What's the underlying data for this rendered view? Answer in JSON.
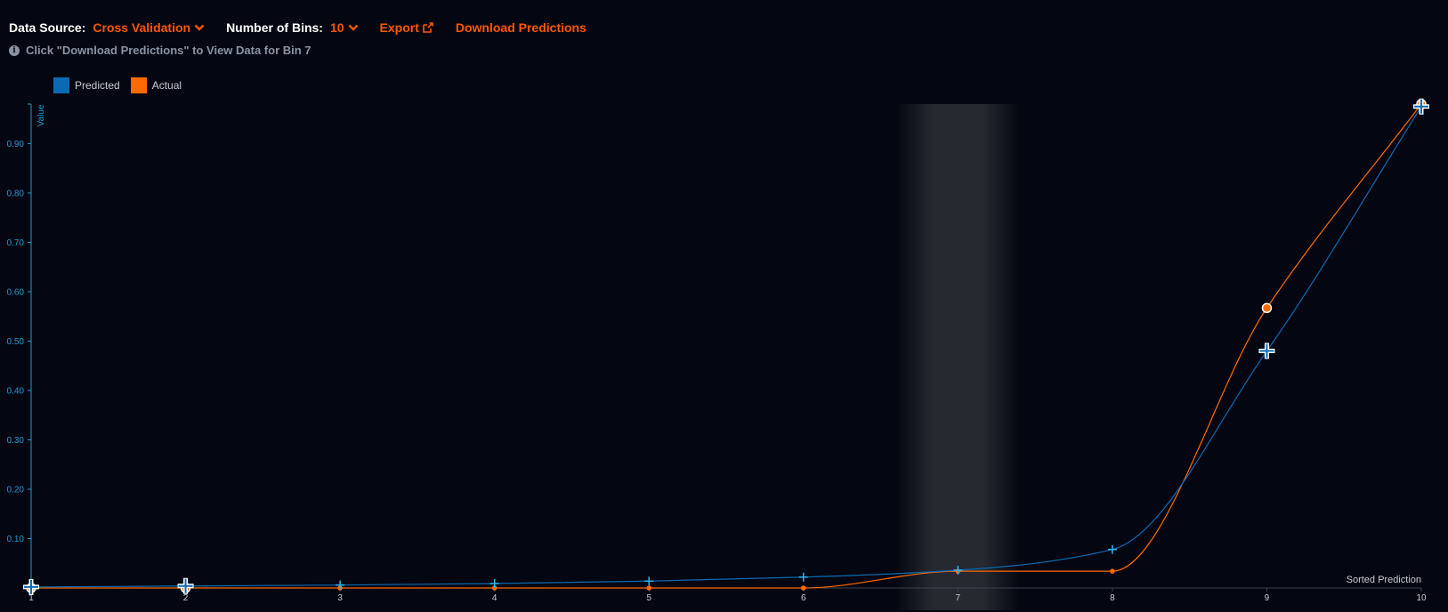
{
  "toolbar": {
    "data_source_label": "Data Source:",
    "data_source_value": "Cross Validation",
    "bins_label": "Number of Bins:",
    "bins_value": "10",
    "export_label": "Export",
    "download_label": "Download Predictions"
  },
  "info": {
    "text": "Click \"Download Predictions\" to View Data for Bin 7"
  },
  "colors": {
    "predicted": "#0a6ab4",
    "predicted_marker": "#22b8f0",
    "actual": "#ff6a00",
    "axis": "#1a9bd7",
    "accent": "#ff5600"
  },
  "chart_data": {
    "type": "line",
    "x": [
      1,
      2,
      3,
      4,
      5,
      6,
      7,
      8,
      9,
      10
    ],
    "series": [
      {
        "name": "Predicted",
        "values": [
          0.002,
          0.004,
          0.006,
          0.009,
          0.014,
          0.022,
          0.036,
          0.078,
          0.48,
          0.975
        ]
      },
      {
        "name": "Actual",
        "values": [
          0.0,
          0.0,
          0.0,
          0.0,
          0.0,
          0.0,
          0.034,
          0.034,
          0.567,
          0.98
        ]
      }
    ],
    "xlabel": "Sorted Prediction",
    "ylabel": "Value",
    "ylim": [
      0,
      0.98
    ],
    "yticks": [
      "0.10",
      "0.20",
      "0.30",
      "0.40",
      "0.50",
      "0.60",
      "0.70",
      "0.80",
      "0.90"
    ],
    "xticks": [
      "1",
      "2",
      "3",
      "4",
      "5",
      "6",
      "7",
      "8",
      "9",
      "10"
    ],
    "highlighted_bin": 7,
    "legend": "top-left",
    "grid": false
  }
}
